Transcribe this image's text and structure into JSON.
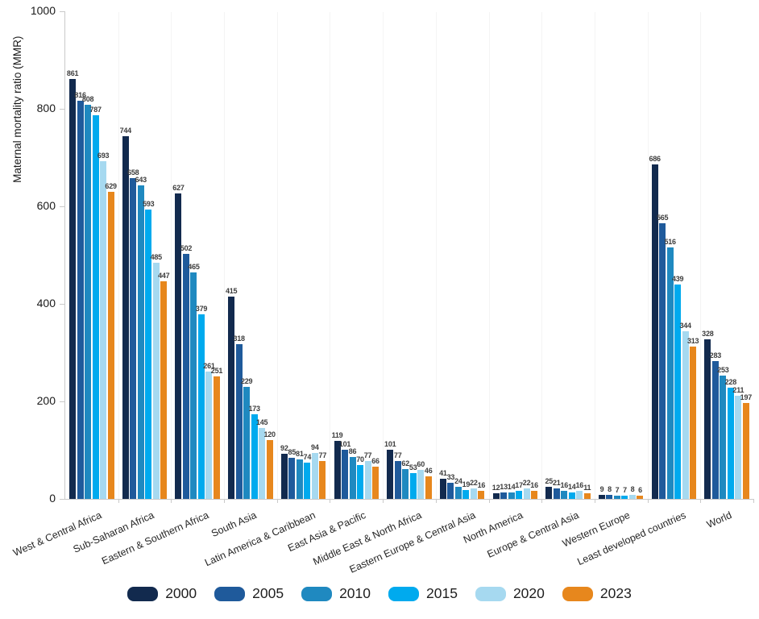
{
  "chart_data": {
    "type": "bar",
    "title": "",
    "xlabel": "",
    "ylabel": "Maternal mortality ratio (MMR)",
    "ylim": [
      0,
      1000
    ],
    "yticks": [
      0,
      200,
      400,
      600,
      800,
      1000
    ],
    "grid": "off",
    "legend_position": "bottom",
    "value_labels": "above bars",
    "categories": [
      "West & Central Africa",
      "Sub-Saharan Africa",
      "Eastern & Southern Africa",
      "South Asia",
      "Latin America & Caribbean",
      "East Asia & Pacific",
      "Middle East & North Africa",
      "Eastern Europe & Central Asia",
      "North America",
      "Europe & Central Asia",
      "Western Europe",
      "Least developed countries",
      "World"
    ],
    "series": [
      {
        "name": "2000",
        "color": "#122a4e",
        "values": [
          861,
          744,
          627,
          415,
          92,
          119,
          101,
          41,
          12,
          25,
          9,
          686,
          328
        ]
      },
      {
        "name": "2005",
        "color": "#1f5a9b",
        "values": [
          816,
          658,
          502,
          318,
          85,
          101,
          77,
          33,
          13,
          21,
          8,
          565,
          283
        ]
      },
      {
        "name": "2010",
        "color": "#1f89c0",
        "values": [
          808,
          643,
          465,
          229,
          81,
          86,
          62,
          24,
          14,
          16,
          7,
          516,
          253
        ]
      },
      {
        "name": "2015",
        "color": "#00aaee",
        "values": [
          787,
          593,
          379,
          173,
          74,
          70,
          53,
          19,
          17,
          14,
          7,
          439,
          228
        ]
      },
      {
        "name": "2020",
        "color": "#a6d9f0",
        "values": [
          693,
          485,
          261,
          145,
          94,
          77,
          60,
          22,
          22,
          16,
          8,
          344,
          211
        ]
      },
      {
        "name": "2023",
        "color": "#e7871d",
        "values": [
          629,
          447,
          251,
          120,
          77,
          66,
          46,
          16,
          16,
          11,
          6,
          313,
          197
        ]
      }
    ]
  }
}
